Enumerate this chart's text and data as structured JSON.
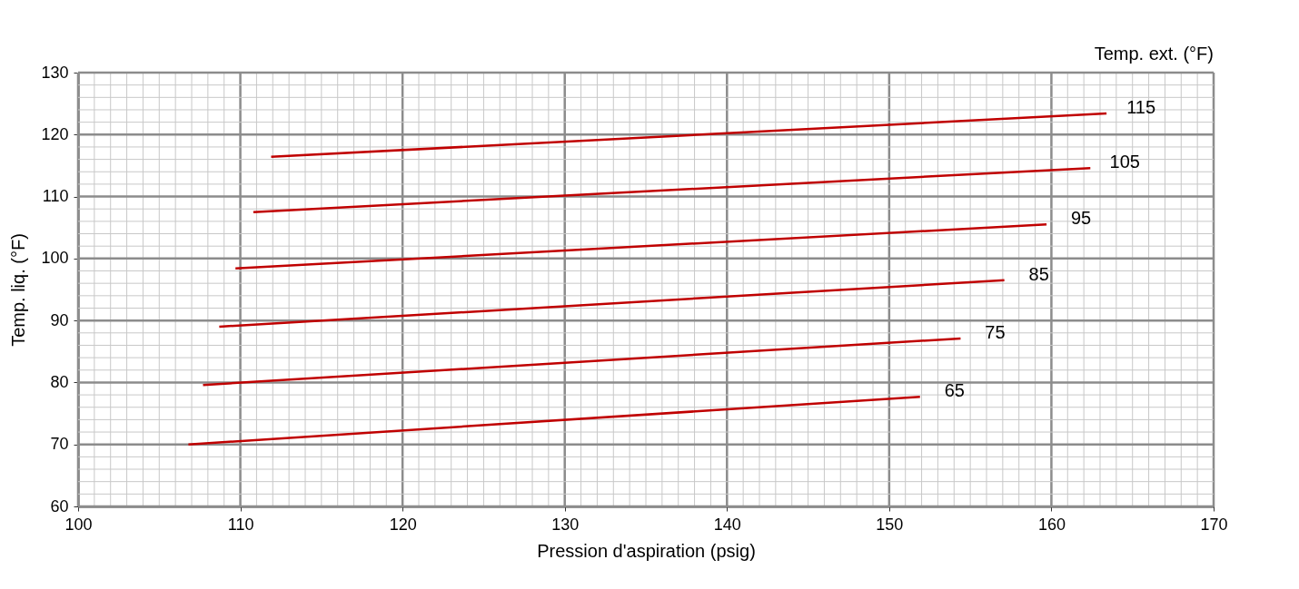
{
  "chart_data": {
    "type": "line",
    "xlabel": "Pression d'aspiration (psig)",
    "ylabel": "Temp. liq. (°F)",
    "legend_title": "Temp. ext. (°F)",
    "xlim": [
      100,
      170
    ],
    "xticks": [
      100,
      110,
      120,
      130,
      140,
      150,
      160,
      170
    ],
    "ylim": [
      60,
      130
    ],
    "yticks": [
      60,
      70,
      80,
      90,
      100,
      110,
      120,
      130
    ],
    "grid": true,
    "marker": "none",
    "line_style": "solid",
    "series": [
      {
        "name": "115",
        "color": "#c00000",
        "x": [
          111.9,
          163.4
        ],
        "values": [
          116.4,
          123.4
        ]
      },
      {
        "name": "105",
        "color": "#c00000",
        "x": [
          110.8,
          162.4
        ],
        "values": [
          107.5,
          114.6
        ]
      },
      {
        "name": "95",
        "color": "#c00000",
        "x": [
          109.7,
          159.7
        ],
        "values": [
          98.4,
          105.5
        ]
      },
      {
        "name": "85",
        "color": "#c00000",
        "x": [
          108.7,
          157.1
        ],
        "values": [
          89.0,
          96.5
        ]
      },
      {
        "name": "75",
        "color": "#c00000",
        "x": [
          107.7,
          154.4
        ],
        "values": [
          79.6,
          87.1
        ]
      },
      {
        "name": "65",
        "color": "#c00000",
        "x": [
          106.8,
          151.9
        ],
        "values": [
          70.0,
          77.7
        ]
      }
    ]
  }
}
